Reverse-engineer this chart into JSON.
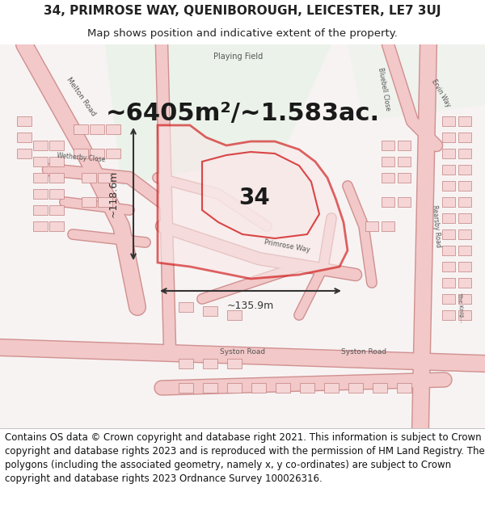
{
  "title_line1": "34, PRIMROSE WAY, QUENIBOROUGH, LEICESTER, LE7 3UJ",
  "title_line2": "Map shows position and indicative extent of the property.",
  "area_text": "~6405m²/~1.583ac.",
  "label_34": "34",
  "dim_width": "~135.9m",
  "dim_height": "~118.6m",
  "footer_text": "Contains OS data © Crown copyright and database right 2021. This information is subject to Crown copyright and database rights 2023 and is reproduced with the permission of HM Land Registry. The polygons (including the associated geometry, namely x, y co-ordinates) are subject to Crown copyright and database rights 2023 Ordnance Survey 100026316.",
  "bg_map_color": "#f5f0f0",
  "plot_bg_color": "#e8f0e8",
  "road_color": "#f0c8c8",
  "road_outline_color": "#e08080",
  "highlight_color": "#cc0000",
  "highlight_fill": "#f5e0e0",
  "dim_line_color": "#333333",
  "text_color": "#222222",
  "title_fontsize": 11,
  "area_fontsize": 22,
  "label_fontsize": 20,
  "footer_fontsize": 8.5
}
